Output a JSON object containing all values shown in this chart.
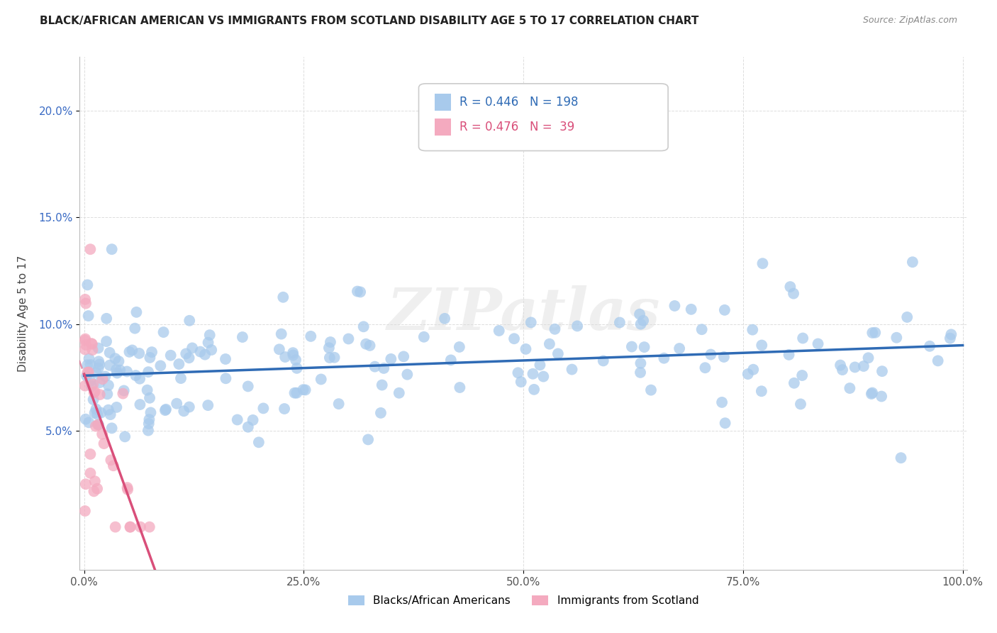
{
  "title": "BLACK/AFRICAN AMERICAN VS IMMIGRANTS FROM SCOTLAND DISABILITY AGE 5 TO 17 CORRELATION CHART",
  "source": "Source: ZipAtlas.com",
  "ylabel": "Disability Age 5 to 17",
  "blue_R": 0.446,
  "blue_N": 198,
  "pink_R": 0.476,
  "pink_N": 39,
  "blue_label": "Blacks/African Americans",
  "pink_label": "Immigrants from Scotland",
  "blue_color": "#A8CAEC",
  "pink_color": "#F4AABF",
  "blue_line_color": "#2F6BB5",
  "pink_line_color": "#D94F7A",
  "watermark": "ZIPatlas",
  "xlim_min": -0.005,
  "xlim_max": 1.005,
  "ylim_min": -0.015,
  "ylim_max": 0.225,
  "xtick_positions": [
    0.0,
    0.25,
    0.5,
    0.75,
    1.0
  ],
  "xtick_labels": [
    "0.0%",
    "25.0%",
    "50.0%",
    "75.0%",
    "100.0%"
  ],
  "ytick_positions": [
    0.05,
    0.1,
    0.15,
    0.2
  ],
  "ytick_labels": [
    "5.0%",
    "10.0%",
    "15.0%",
    "20.0%"
  ]
}
